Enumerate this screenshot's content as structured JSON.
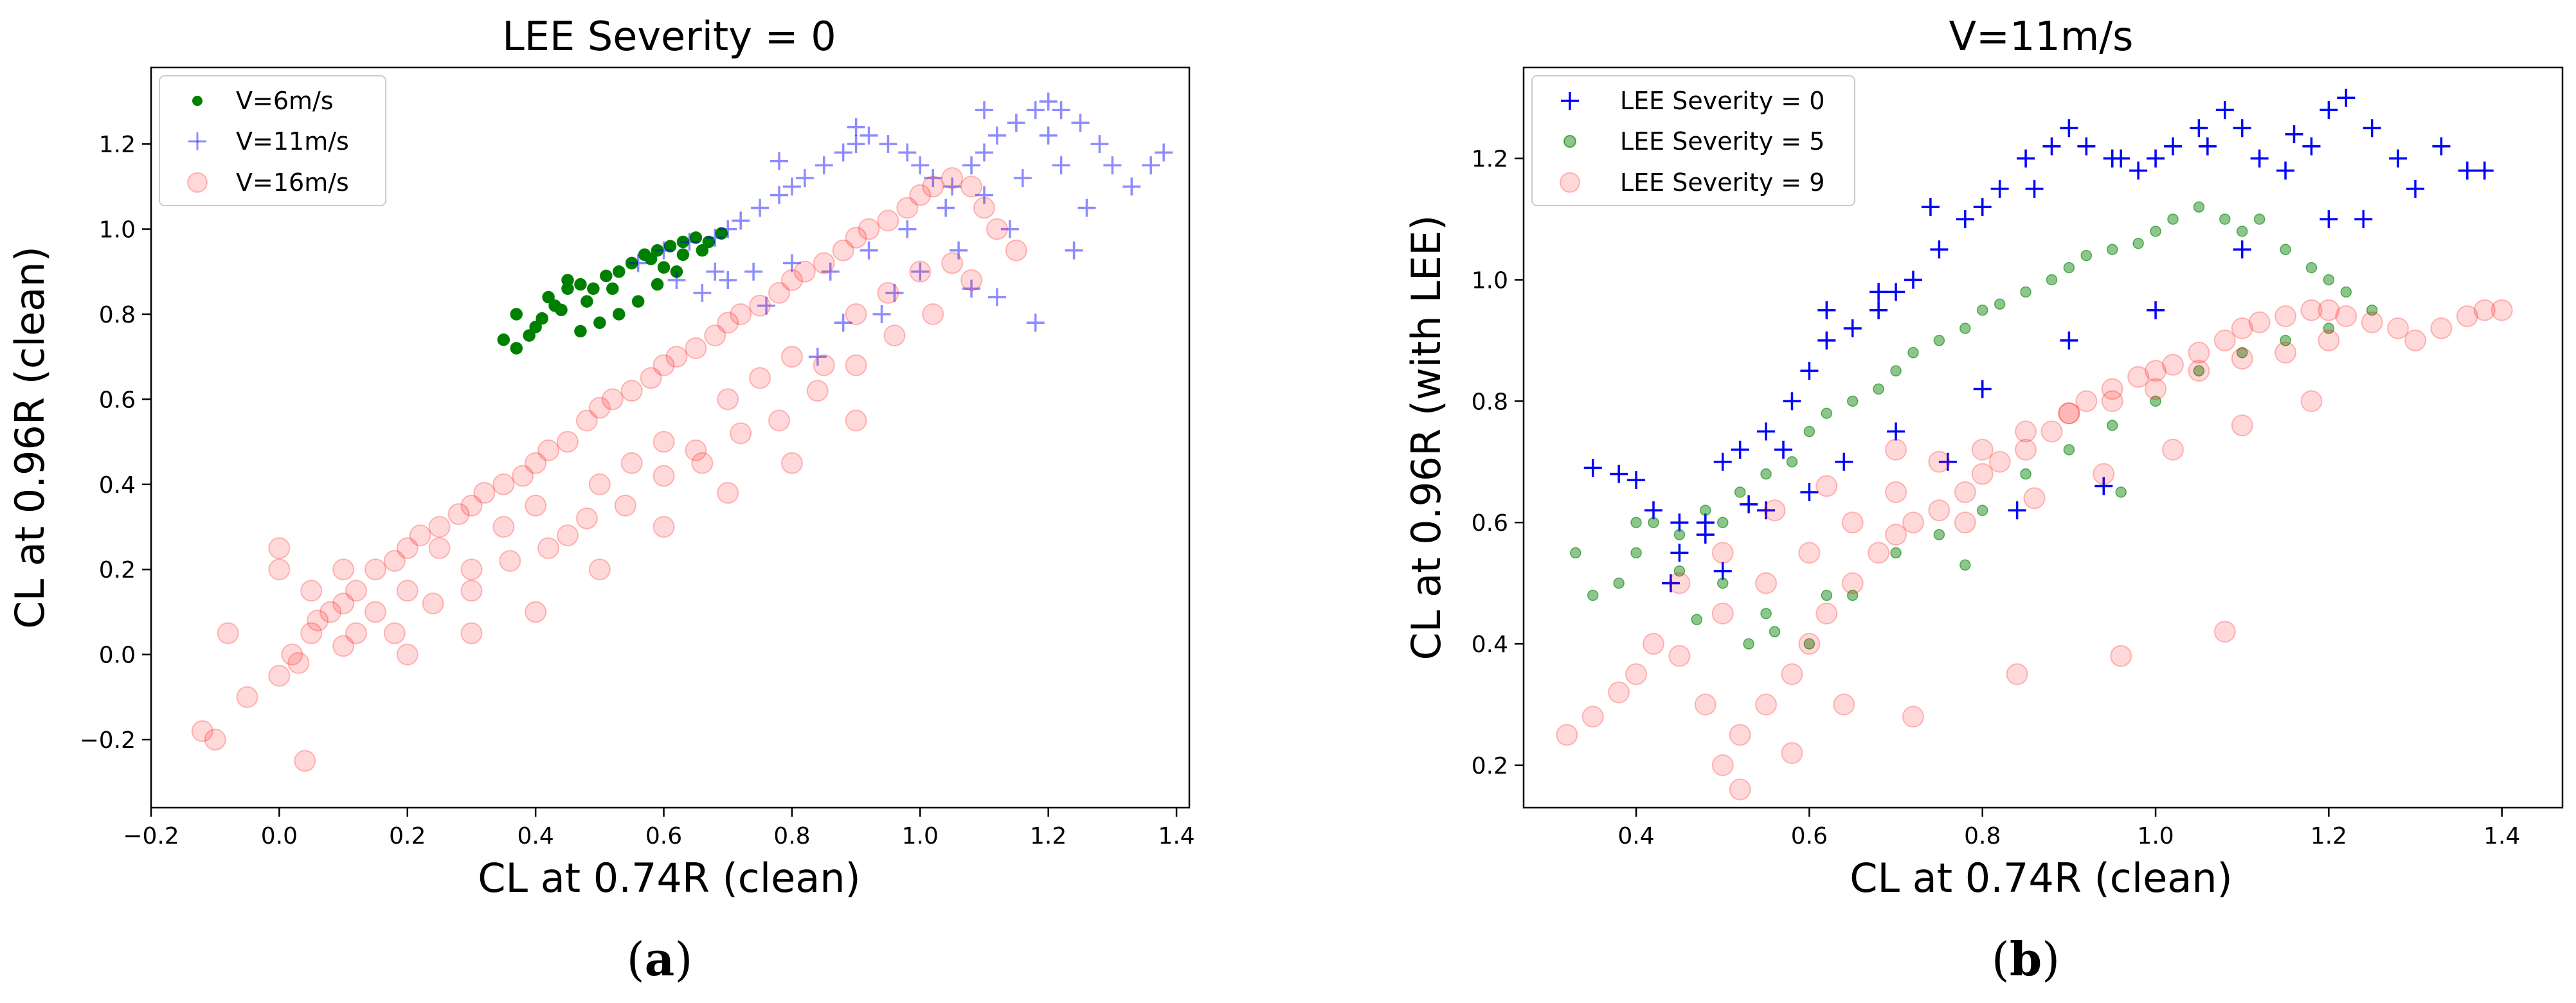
{
  "chart_data": [
    {
      "type": "scatter",
      "title": "LEE Severity = 0",
      "xlabel": "CL at 0.74R (clean)",
      "ylabel": "CL at 0.96R (clean)",
      "xlim": [
        -0.2,
        1.42
      ],
      "ylim": [
        -0.36,
        1.38
      ],
      "xticks": [
        -0.2,
        0.0,
        0.2,
        0.4,
        0.6,
        0.8,
        1.0,
        1.2,
        1.4
      ],
      "xtick_labels": [
        "−0.2",
        "0.0",
        "0.2",
        "0.4",
        "0.6",
        "0.8",
        "1.0",
        "1.2",
        "1.4"
      ],
      "yticks": [
        -0.2,
        0.0,
        0.2,
        0.4,
        0.6,
        0.8,
        1.0,
        1.2
      ],
      "ytick_labels": [
        "−0.2",
        "0.0",
        "0.2",
        "0.4",
        "0.6",
        "0.8",
        "1.0",
        "1.2"
      ],
      "legend_position": "top-left",
      "caption_letter": "a",
      "series": [
        {
          "name": "V=6m/s",
          "marker": "dot",
          "color": "#008000",
          "alpha": 1.0,
          "x": [
            0.35,
            0.37,
            0.39,
            0.41,
            0.43,
            0.45,
            0.47,
            0.49,
            0.51,
            0.53,
            0.55,
            0.57,
            0.59,
            0.61,
            0.63,
            0.65,
            0.67,
            0.69,
            0.42,
            0.45,
            0.48,
            0.5,
            0.53,
            0.56,
            0.59,
            0.62,
            0.37,
            0.4,
            0.44,
            0.47,
            0.52,
            0.55,
            0.58,
            0.6,
            0.63,
            0.66
          ],
          "y": [
            0.74,
            0.72,
            0.75,
            0.79,
            0.82,
            0.86,
            0.87,
            0.86,
            0.89,
            0.9,
            0.92,
            0.94,
            0.95,
            0.96,
            0.97,
            0.98,
            0.97,
            0.99,
            0.84,
            0.88,
            0.83,
            0.78,
            0.8,
            0.83,
            0.87,
            0.9,
            0.8,
            0.77,
            0.81,
            0.76,
            0.86,
            0.92,
            0.93,
            0.91,
            0.94,
            0.95
          ]
        },
        {
          "name": "V=11m/s",
          "marker": "plus",
          "color": "#0000ff",
          "alpha": 0.45,
          "x": [
            0.56,
            0.6,
            0.64,
            0.68,
            0.7,
            0.72,
            0.75,
            0.78,
            0.8,
            0.82,
            0.85,
            0.88,
            0.9,
            0.92,
            0.95,
            0.98,
            1.0,
            1.02,
            1.05,
            1.08,
            1.1,
            1.12,
            1.15,
            1.18,
            1.2,
            1.22,
            1.25,
            1.28,
            1.3,
            1.33,
            1.36,
            1.38,
            0.74,
            0.8,
            0.86,
            0.92,
            0.98,
            1.04,
            1.1,
            1.16,
            1.22,
            1.26,
            0.66,
            0.7,
            0.84,
            0.96,
            1.06,
            1.14,
            1.24,
            0.62,
            0.68,
            0.76,
            0.88,
            0.94,
            1.0,
            1.08,
            1.12,
            1.18,
            1.2,
            1.1,
            0.9,
            0.78
          ],
          "y": [
            0.92,
            0.95,
            0.97,
            0.98,
            1.0,
            1.02,
            1.05,
            1.08,
            1.1,
            1.12,
            1.15,
            1.18,
            1.2,
            1.22,
            1.2,
            1.18,
            1.15,
            1.12,
            1.1,
            1.15,
            1.18,
            1.22,
            1.25,
            1.28,
            1.3,
            1.28,
            1.25,
            1.2,
            1.15,
            1.1,
            1.15,
            1.18,
            0.9,
            0.92,
            0.9,
            0.95,
            1.0,
            1.05,
            1.08,
            1.12,
            1.15,
            1.05,
            0.85,
            0.88,
            0.7,
            0.85,
            0.95,
            1.0,
            0.95,
            0.88,
            0.9,
            0.82,
            0.78,
            0.8,
            0.9,
            0.86,
            0.84,
            0.78,
            1.22,
            1.28,
            1.24,
            1.16
          ]
        },
        {
          "name": "V=16m/s",
          "marker": "circle",
          "color": "#ff0000",
          "alpha": 0.15,
          "x": [
            -0.12,
            -0.1,
            -0.05,
            0.0,
            0.02,
            0.05,
            0.08,
            0.1,
            0.12,
            0.15,
            0.18,
            0.2,
            0.22,
            0.25,
            0.28,
            0.3,
            0.32,
            0.35,
            0.38,
            0.4,
            0.42,
            0.45,
            0.48,
            0.5,
            0.52,
            0.55,
            0.58,
            0.6,
            0.62,
            0.65,
            0.68,
            0.7,
            0.72,
            0.75,
            0.78,
            0.8,
            0.82,
            0.85,
            0.88,
            0.9,
            0.92,
            0.95,
            0.98,
            1.0,
            1.02,
            1.05,
            1.08,
            1.1,
            1.12,
            1.15,
            0.05,
            0.1,
            0.15,
            0.2,
            0.25,
            0.3,
            0.35,
            0.4,
            0.45,
            0.5,
            0.55,
            0.6,
            0.65,
            0.7,
            0.75,
            0.8,
            0.85,
            0.9,
            0.95,
            1.0,
            1.05,
            0.0,
            0.06,
            0.12,
            0.18,
            0.24,
            0.3,
            0.36,
            0.42,
            0.48,
            0.54,
            0.6,
            0.66,
            0.72,
            0.78,
            0.84,
            0.9,
            0.96,
            1.02,
            1.08,
            0.03,
            0.1,
            0.2,
            0.3,
            0.4,
            0.5,
            0.6,
            0.7,
            0.8,
            0.9,
            -0.08,
            0.0,
            0.04
          ],
          "y": [
            -0.18,
            -0.2,
            -0.1,
            -0.05,
            0.0,
            0.05,
            0.1,
            0.12,
            0.15,
            0.2,
            0.22,
            0.25,
            0.28,
            0.3,
            0.33,
            0.35,
            0.38,
            0.4,
            0.42,
            0.45,
            0.48,
            0.5,
            0.55,
            0.58,
            0.6,
            0.62,
            0.65,
            0.68,
            0.7,
            0.72,
            0.75,
            0.78,
            0.8,
            0.82,
            0.85,
            0.88,
            0.9,
            0.92,
            0.95,
            0.98,
            1.0,
            1.02,
            1.05,
            1.08,
            1.1,
            1.12,
            1.1,
            1.05,
            1.0,
            0.95,
            0.15,
            0.2,
            0.1,
            0.15,
            0.25,
            0.2,
            0.3,
            0.35,
            0.28,
            0.4,
            0.45,
            0.5,
            0.48,
            0.6,
            0.65,
            0.7,
            0.68,
            0.8,
            0.85,
            0.9,
            0.92,
            0.2,
            0.08,
            0.05,
            0.05,
            0.12,
            0.15,
            0.22,
            0.25,
            0.32,
            0.35,
            0.42,
            0.45,
            0.52,
            0.55,
            0.62,
            0.68,
            0.75,
            0.8,
            0.88,
            -0.02,
            0.02,
            0.0,
            0.05,
            0.1,
            0.2,
            0.3,
            0.38,
            0.45,
            0.55,
            0.05,
            0.25,
            -0.25
          ]
        }
      ]
    },
    {
      "type": "scatter",
      "title": "V=11m/s",
      "xlabel": "CL at 0.74R (clean)",
      "ylabel": "CL at 0.96R (with LEE)",
      "xlim": [
        0.27,
        1.47
      ],
      "ylim": [
        0.13,
        1.35
      ],
      "xticks": [
        0.4,
        0.6,
        0.8,
        1.0,
        1.2,
        1.4
      ],
      "xtick_labels": [
        "0.4",
        "0.6",
        "0.8",
        "1.0",
        "1.2",
        "1.4"
      ],
      "yticks": [
        0.2,
        0.4,
        0.6,
        0.8,
        1.0,
        1.2
      ],
      "ytick_labels": [
        "0.2",
        "0.4",
        "0.6",
        "0.8",
        "1.0",
        "1.2"
      ],
      "legend_position": "top-left",
      "caption_letter": "b",
      "series": [
        {
          "name": "LEE Severity = 0",
          "marker": "plus",
          "color": "#0000ff",
          "alpha": 1.0,
          "x": [
            0.35,
            0.38,
            0.4,
            0.42,
            0.45,
            0.48,
            0.5,
            0.52,
            0.55,
            0.58,
            0.6,
            0.62,
            0.65,
            0.68,
            0.7,
            0.72,
            0.75,
            0.78,
            0.8,
            0.82,
            0.85,
            0.88,
            0.9,
            0.92,
            0.95,
            0.98,
            1.0,
            1.02,
            1.05,
            1.08,
            1.1,
            1.12,
            1.15,
            1.18,
            1.2,
            1.22,
            1.25,
            1.28,
            1.3,
            1.33,
            1.36,
            1.38,
            0.45,
            0.5,
            0.55,
            0.6,
            0.7,
            0.8,
            0.9,
            1.0,
            1.1,
            1.2,
            0.62,
            0.68,
            0.74,
            0.86,
            0.96,
            1.06,
            1.16,
            1.24,
            0.44,
            0.48,
            0.53,
            0.57,
            0.64,
            0.76,
            0.84,
            0.94
          ],
          "y": [
            0.69,
            0.68,
            0.67,
            0.62,
            0.6,
            0.58,
            0.7,
            0.72,
            0.75,
            0.8,
            0.85,
            0.9,
            0.92,
            0.95,
            0.98,
            1.0,
            1.05,
            1.1,
            1.12,
            1.15,
            1.2,
            1.22,
            1.25,
            1.22,
            1.2,
            1.18,
            1.2,
            1.22,
            1.25,
            1.28,
            1.25,
            1.2,
            1.18,
            1.22,
            1.28,
            1.3,
            1.25,
            1.2,
            1.15,
            1.22,
            1.18,
            1.18,
            0.55,
            0.52,
            0.62,
            0.65,
            0.75,
            0.82,
            0.9,
            0.95,
            1.05,
            1.1,
            0.95,
            0.98,
            1.12,
            1.15,
            1.2,
            1.22,
            1.24,
            1.1,
            0.5,
            0.6,
            0.63,
            0.72,
            0.7,
            0.7,
            0.62,
            0.66
          ]
        },
        {
          "name": "LEE Severity = 5",
          "marker": "dot",
          "color": "#008000",
          "alpha": 0.45,
          "x": [
            0.33,
            0.35,
            0.38,
            0.4,
            0.42,
            0.45,
            0.48,
            0.5,
            0.52,
            0.55,
            0.58,
            0.6,
            0.62,
            0.65,
            0.68,
            0.7,
            0.72,
            0.75,
            0.78,
            0.8,
            0.82,
            0.85,
            0.88,
            0.9,
            0.92,
            0.95,
            0.98,
            1.0,
            1.02,
            1.05,
            1.08,
            1.1,
            1.12,
            1.15,
            1.18,
            1.2,
            1.22,
            1.25,
            0.4,
            0.45,
            0.5,
            0.55,
            0.6,
            0.65,
            0.7,
            0.75,
            0.8,
            0.85,
            0.9,
            0.95,
            1.0,
            1.05,
            1.1,
            1.15,
            1.2,
            0.47,
            0.53,
            0.56,
            0.62,
            0.78,
            0.96
          ],
          "y": [
            0.55,
            0.48,
            0.5,
            0.55,
            0.6,
            0.58,
            0.62,
            0.6,
            0.65,
            0.68,
            0.7,
            0.75,
            0.78,
            0.8,
            0.82,
            0.85,
            0.88,
            0.9,
            0.92,
            0.95,
            0.96,
            0.98,
            1.0,
            1.02,
            1.04,
            1.05,
            1.06,
            1.08,
            1.1,
            1.12,
            1.1,
            1.08,
            1.1,
            1.05,
            1.02,
            1.0,
            0.98,
            0.95,
            0.6,
            0.52,
            0.5,
            0.45,
            0.4,
            0.48,
            0.55,
            0.58,
            0.62,
            0.68,
            0.72,
            0.76,
            0.8,
            0.85,
            0.88,
            0.9,
            0.92,
            0.44,
            0.4,
            0.42,
            0.48,
            0.53,
            0.65
          ]
        },
        {
          "name": "LEE Severity = 9",
          "marker": "circle",
          "color": "#ff0000",
          "alpha": 0.15,
          "x": [
            0.32,
            0.35,
            0.38,
            0.4,
            0.42,
            0.45,
            0.48,
            0.5,
            0.52,
            0.55,
            0.58,
            0.6,
            0.62,
            0.65,
            0.68,
            0.7,
            0.72,
            0.75,
            0.78,
            0.8,
            0.82,
            0.85,
            0.88,
            0.9,
            0.92,
            0.95,
            0.98,
            1.0,
            1.02,
            1.05,
            1.08,
            1.1,
            1.12,
            1.15,
            1.18,
            1.2,
            1.22,
            1.25,
            1.28,
            1.3,
            1.33,
            1.36,
            1.38,
            1.4,
            0.5,
            0.55,
            0.6,
            0.65,
            0.7,
            0.75,
            0.8,
            0.85,
            0.9,
            0.95,
            1.0,
            1.05,
            1.1,
            1.15,
            1.2,
            0.52,
            0.58,
            0.64,
            0.72,
            0.84,
            0.96,
            1.08,
            0.45,
            0.5,
            0.56,
            0.62,
            0.7,
            0.78,
            0.86,
            0.94,
            1.02,
            1.1,
            1.18
          ],
          "y": [
            0.25,
            0.28,
            0.32,
            0.35,
            0.4,
            0.38,
            0.3,
            0.2,
            0.25,
            0.3,
            0.35,
            0.4,
            0.45,
            0.5,
            0.55,
            0.58,
            0.6,
            0.62,
            0.65,
            0.68,
            0.7,
            0.72,
            0.75,
            0.78,
            0.8,
            0.82,
            0.84,
            0.85,
            0.86,
            0.88,
            0.9,
            0.92,
            0.93,
            0.94,
            0.95,
            0.95,
            0.94,
            0.93,
            0.92,
            0.9,
            0.92,
            0.94,
            0.95,
            0.95,
            0.45,
            0.5,
            0.55,
            0.6,
            0.65,
            0.7,
            0.72,
            0.75,
            0.78,
            0.8,
            0.82,
            0.85,
            0.87,
            0.88,
            0.9,
            0.16,
            0.22,
            0.3,
            0.28,
            0.35,
            0.38,
            0.42,
            0.5,
            0.55,
            0.62,
            0.66,
            0.72,
            0.6,
            0.64,
            0.68,
            0.72,
            0.76,
            0.8
          ]
        }
      ]
    }
  ]
}
